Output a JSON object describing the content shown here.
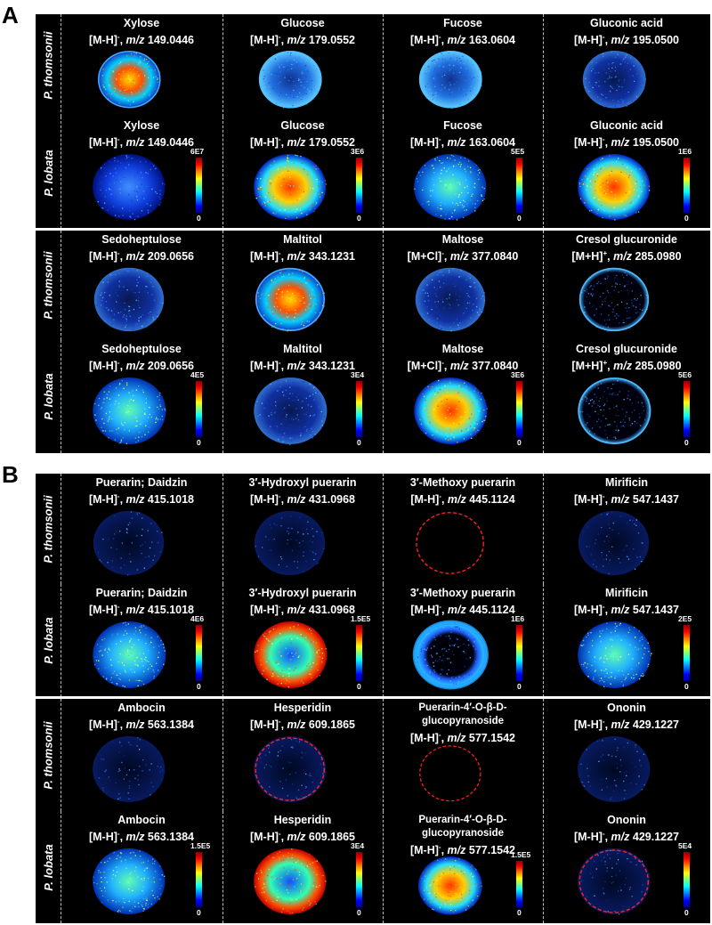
{
  "panels": [
    {
      "letter": "A",
      "rows": [
        {
          "label": "P. thomsonii",
          "cells": [
            {
              "name": "Xylose",
              "ion": "[M-H]",
              "charge": "-",
              "mz": "149.0446",
              "scale": "",
              "style": "hot-ring"
            },
            {
              "name": "Glucose",
              "ion": "[M-H]",
              "charge": "-",
              "mz": "179.0552",
              "scale": "",
              "style": "ring"
            },
            {
              "name": "Fucose",
              "ion": "[M-H]",
              "charge": "-",
              "mz": "163.0604",
              "scale": "",
              "style": "ring"
            },
            {
              "name": "Gluconic acid",
              "ion": "[M-H]",
              "charge": "-",
              "mz": "195.0500",
              "scale": "",
              "style": "faint"
            }
          ]
        },
        {
          "label": "P. lobata",
          "cells": [
            {
              "name": "Xylose",
              "ion": "[M-H]",
              "charge": "-",
              "mz": "149.0446",
              "scale": "6E7",
              "style": "dim"
            },
            {
              "name": "Glucose",
              "ion": "[M-H]",
              "charge": "-",
              "mz": "179.0552",
              "scale": "3E6",
              "style": "hot"
            },
            {
              "name": "Fucose",
              "ion": "[M-H]",
              "charge": "-",
              "mz": "163.0604",
              "scale": "5E5",
              "style": "mid"
            },
            {
              "name": "Gluconic acid",
              "ion": "[M-H]",
              "charge": "-",
              "mz": "195.0500",
              "scale": "1E6",
              "style": "hot"
            }
          ]
        },
        {
          "label": "P. thomsonii",
          "cells": [
            {
              "name": "Sedoheptulose",
              "ion": "[M-H]",
              "charge": "-",
              "mz": "209.0656",
              "scale": "",
              "style": "faint"
            },
            {
              "name": "Maltitol",
              "ion": "[M-H]",
              "charge": "-",
              "mz": "343.1231",
              "scale": "",
              "style": "hot-ring"
            },
            {
              "name": "Maltose",
              "ion": "[M+Cl]",
              "charge": "-",
              "mz": "377.0840",
              "scale": "",
              "style": "faint"
            },
            {
              "name": "Cresol glucuronide",
              "ion": "[M+H]",
              "charge": "+",
              "mz": "285.0980",
              "scale": "",
              "style": "edge"
            }
          ]
        },
        {
          "label": "P. lobata",
          "cells": [
            {
              "name": "Sedoheptulose",
              "ion": "[M-H]",
              "charge": "-",
              "mz": "209.0656",
              "scale": "4E5",
              "style": "mid"
            },
            {
              "name": "Maltitol",
              "ion": "[M-H]",
              "charge": "-",
              "mz": "343.1231",
              "scale": "3E4",
              "style": "faint"
            },
            {
              "name": "Maltose",
              "ion": "[M+Cl]",
              "charge": "-",
              "mz": "377.0840",
              "scale": "3E6",
              "style": "hot"
            },
            {
              "name": "Cresol glucuronide",
              "ion": "[M+H]",
              "charge": "+",
              "mz": "285.0980",
              "scale": "5E6",
              "style": "edge"
            }
          ]
        }
      ]
    },
    {
      "letter": "B",
      "rows": [
        {
          "label": "P. thomsonii",
          "cells": [
            {
              "name": "Puerarin; Daidzin",
              "ion": "[M-H]",
              "charge": "-",
              "mz": "415.1018",
              "scale": "",
              "style": "sparse"
            },
            {
              "name": "3′-Hydroxyl puerarin",
              "ion": "[M-H]",
              "charge": "-",
              "mz": "431.0968",
              "scale": "",
              "style": "sparse"
            },
            {
              "name": "3′-Methoxy puerarin",
              "ion": "[M-H]",
              "charge": "-",
              "mz": "445.1124",
              "scale": "",
              "style": "outline"
            },
            {
              "name": "Mirificin",
              "ion": "[M-H]",
              "charge": "-",
              "mz": "547.1437",
              "scale": "",
              "style": "sparse"
            }
          ]
        },
        {
          "label": "P. lobata",
          "cells": [
            {
              "name": "Puerarin; Daidzin",
              "ion": "[M-H]",
              "charge": "-",
              "mz": "415.1018",
              "scale": "4E6",
              "style": "mid"
            },
            {
              "name": "3′-Hydroxyl puerarin",
              "ion": "[M-H]",
              "charge": "-",
              "mz": "431.0968",
              "scale": "1.5E5",
              "style": "hot-edge"
            },
            {
              "name": "3′-Methoxy puerarin",
              "ion": "[M-H]",
              "charge": "-",
              "mz": "445.1124",
              "scale": "1E6",
              "style": "edge-thick"
            },
            {
              "name": "Mirificin",
              "ion": "[M-H]",
              "charge": "-",
              "mz": "547.1437",
              "scale": "2E5",
              "style": "mid"
            }
          ]
        },
        {
          "label": "P. thomsonii",
          "cells": [
            {
              "name": "Ambocin",
              "ion": "[M-H]",
              "charge": "-",
              "mz": "563.1384",
              "scale": "",
              "style": "sparse"
            },
            {
              "name": "Hesperidin",
              "ion": "[M-H]",
              "charge": "-",
              "mz": "609.1865",
              "scale": "",
              "style": "sparse-outline"
            },
            {
              "name": "Puerarin-4′-O-β-D-glucopyranoside",
              "ion": "[M-H]",
              "charge": "-",
              "mz": "577.1542",
              "scale": "",
              "style": "outline"
            },
            {
              "name": "Ononin",
              "ion": "[M-H]",
              "charge": "-",
              "mz": "429.1227",
              "scale": "",
              "style": "sparse"
            }
          ]
        },
        {
          "label": "P. lobata",
          "cells": [
            {
              "name": "Ambocin",
              "ion": "[M-H]",
              "charge": "-",
              "mz": "563.1384",
              "scale": "1.5E5",
              "style": "mid"
            },
            {
              "name": "Hesperidin",
              "ion": "[M-H]",
              "charge": "-",
              "mz": "609.1865",
              "scale": "3E4",
              "style": "hot-edge"
            },
            {
              "name": "Puerarin-4′-O-β-D-glucopyranoside",
              "ion": "[M-H]",
              "charge": "-",
              "mz": "577.1542",
              "scale": "1.5E5",
              "style": "hot"
            },
            {
              "name": "Ononin",
              "ion": "[M-H]",
              "charge": "-",
              "mz": "429.1227",
              "scale": "5E4",
              "style": "sparse-outline"
            }
          ]
        }
      ]
    }
  ],
  "mz_label": "m/z",
  "scale_min": "0",
  "colors": {
    "background": "#000000",
    "divider": "#bfbfbf",
    "outline": "#ff2020"
  }
}
